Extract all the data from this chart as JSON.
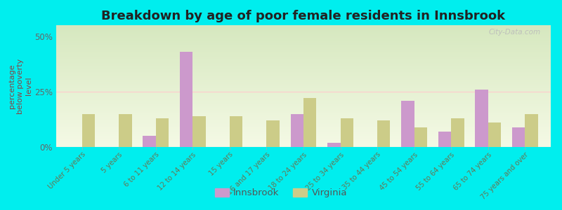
{
  "title": "Breakdown by age of poor female residents in Innsbrook",
  "ylabel": "percentage\nbelow poverty\nlevel",
  "categories": [
    "Under 5 years",
    "5 years",
    "6 to 11 years",
    "12 to 14 years",
    "15 years",
    "16 and 17 years",
    "18 to 24 years",
    "25 to 34 years",
    "35 to 44 years",
    "45 to 54 years",
    "55 to 64 years",
    "65 to 74 years",
    "75 years and over"
  ],
  "innsbrook": [
    0,
    0,
    5.0,
    43.0,
    0,
    0,
    15.0,
    2.0,
    0,
    21.0,
    7.0,
    26.0,
    9.0
  ],
  "virginia": [
    15.0,
    15.0,
    13.0,
    14.0,
    14.0,
    12.0,
    22.0,
    13.0,
    12.0,
    9.0,
    13.0,
    11.0,
    15.0
  ],
  "innsbrook_color": "#cc99cc",
  "virginia_color": "#cccc88",
  "background_top": "#d8e8c0",
  "background_bottom": "#f0f5e0",
  "outer_background": "#00eeee",
  "ylim": [
    0,
    55
  ],
  "yticks": [
    0,
    25,
    50
  ],
  "ytick_labels": [
    "0%",
    "25%",
    "50%"
  ],
  "title_fontsize": 13,
  "axis_label_fontsize": 8,
  "legend_labels": [
    "Innsbrook",
    "Virginia"
  ],
  "bar_width": 0.35
}
